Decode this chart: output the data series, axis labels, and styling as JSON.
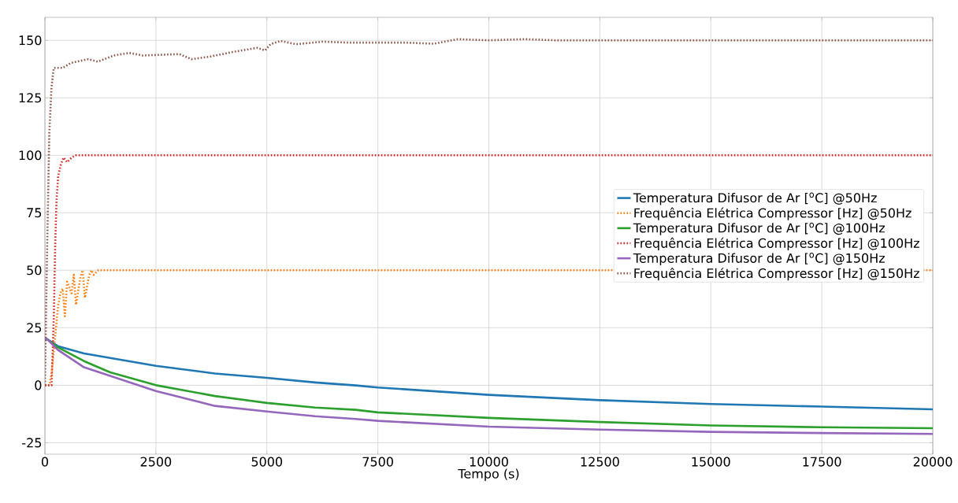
{
  "chart_data": {
    "type": "line",
    "xlabel": "Tempo (s)",
    "xlim": [
      0,
      20000
    ],
    "ylim": [
      -30,
      160
    ],
    "xticks": [
      0,
      2500,
      5000,
      7500,
      10000,
      12500,
      15000,
      17500,
      20000
    ],
    "yticks": [
      -25,
      0,
      25,
      50,
      75,
      100,
      125,
      150
    ],
    "grid": true,
    "legend": "right",
    "series": [
      {
        "name": "Temperatura Difusor de Ar [$^{o}$C] @50Hz",
        "color": "#1f77b4",
        "line_style": "solid",
        "x": [
          0,
          50,
          290,
          880,
          2500,
          3830,
          5000,
          6087,
          7000,
          7500,
          10000,
          12500,
          15000,
          17500,
          20000
        ],
        "values": [
          20.3,
          20,
          17,
          13.8,
          8.4,
          5.1,
          3.2,
          1.2,
          -0.1,
          -1,
          -4.2,
          -6.5,
          -8.2,
          -9.3,
          -10.5
        ]
      },
      {
        "name": "Frequência Elétrica Compressor [Hz] @50Hz",
        "color": "#ff7f0e",
        "line_style": "dotted",
        "x": [
          0,
          100,
          150,
          200,
          250,
          300,
          350,
          400,
          450,
          500,
          600,
          650,
          700,
          800,
          850,
          900,
          1000,
          1050,
          1100,
          1200,
          1500,
          20000
        ],
        "values": [
          0,
          0,
          5,
          15,
          25,
          35,
          40,
          42,
          30,
          45,
          40,
          48,
          35,
          47,
          50,
          38,
          48,
          50,
          48,
          50,
          50,
          50
        ]
      },
      {
        "name": "Temperatura Difusor de Ar [$^{o}$C] @100Hz",
        "color": "#2ca02c",
        "line_style": "solid",
        "x": [
          0,
          50,
          290,
          880,
          1470,
          2500,
          3830,
          5000,
          6087,
          7000,
          7500,
          10000,
          12500,
          15000,
          17500,
          20000
        ],
        "values": [
          20.3,
          20,
          16.5,
          10.5,
          5.6,
          0,
          -4.7,
          -7.7,
          -9.7,
          -10.7,
          -11.8,
          -14.2,
          -16,
          -17.5,
          -18.3,
          -18.7
        ]
      },
      {
        "name": "Frequência Elétrica Compressor [Hz] @100Hz",
        "color": "#d62728",
        "line_style": "dotted",
        "x": [
          0,
          150,
          200,
          230,
          260,
          300,
          360,
          420,
          500,
          600,
          700,
          20000
        ],
        "values": [
          0,
          0,
          30,
          60,
          80,
          91,
          96,
          99,
          97,
          99,
          100,
          100
        ]
      },
      {
        "name": "Temperatura Difusor de Ar [$^{o}$C] @150Hz",
        "color": "#9467bd",
        "line_style": "solid",
        "x": [
          0,
          50,
          290,
          880,
          2500,
          3830,
          5000,
          6087,
          7000,
          7500,
          10000,
          12500,
          15000,
          17500,
          20000
        ],
        "values": [
          20.3,
          20,
          15.4,
          7.8,
          -2.5,
          -9,
          -11.4,
          -13.5,
          -14.7,
          -15.5,
          -18,
          -19.3,
          -20.3,
          -20.8,
          -21.2
        ]
      },
      {
        "name": "Frequência Elétrica Compressor [Hz] @150Hz",
        "color": "#8c564b",
        "line_style": "dotted",
        "x": [
          0,
          50,
          100,
          150,
          200,
          400,
          590,
          975,
          1190,
          1550,
          1900,
          2200,
          3030,
          3300,
          3720,
          4250,
          4780,
          4960,
          5080,
          5310,
          5660,
          6250,
          6850,
          8130,
          8760,
          9300,
          10000,
          10800,
          11500,
          20000
        ],
        "values": [
          0,
          60,
          110,
          130,
          138,
          138,
          140.2,
          141.8,
          140.7,
          143.4,
          144.5,
          143.4,
          144,
          141.8,
          142.9,
          145,
          146.7,
          145.6,
          148.3,
          149.7,
          148.3,
          149.4,
          149,
          149,
          148.5,
          150.5,
          150,
          150.5,
          150,
          150
        ]
      }
    ]
  }
}
